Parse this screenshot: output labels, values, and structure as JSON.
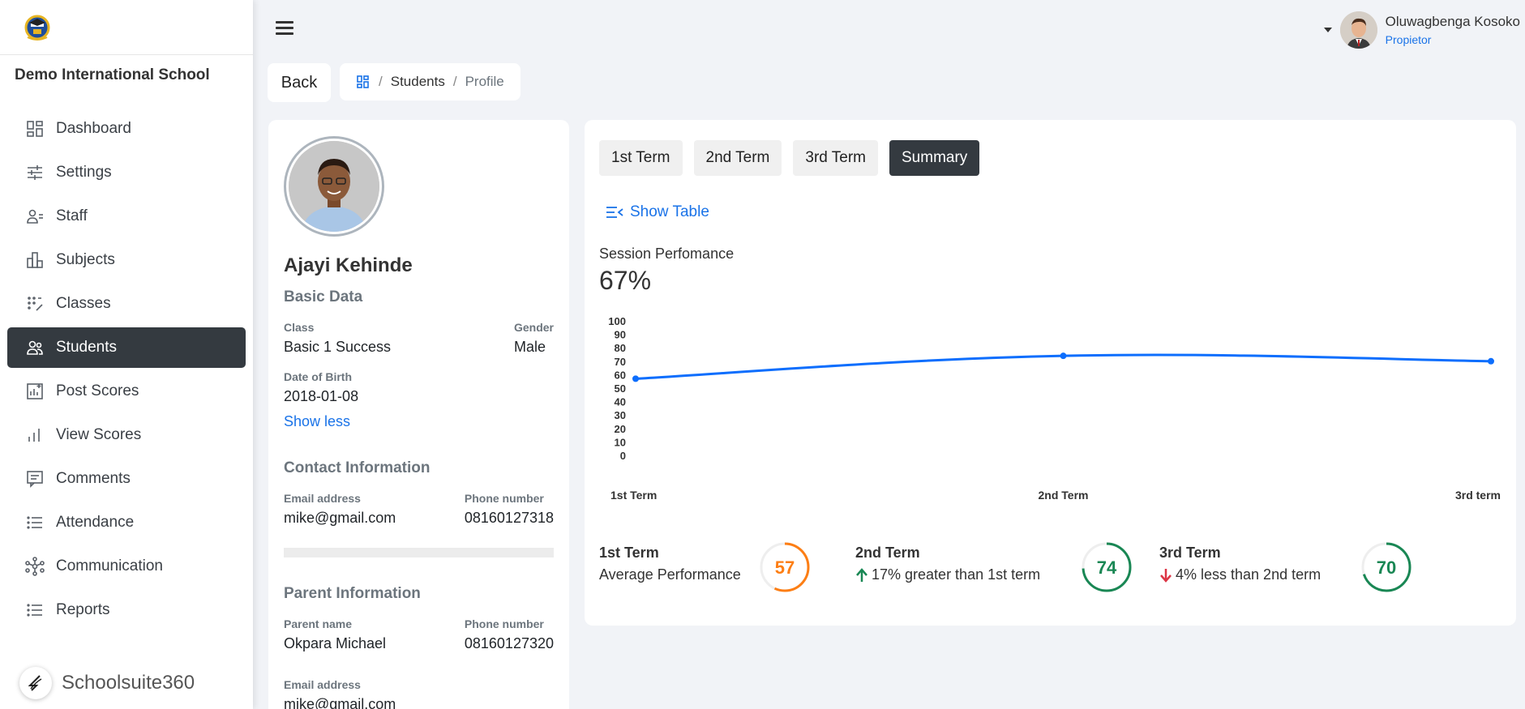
{
  "sidebar": {
    "school_name": "Demo International School",
    "items": [
      {
        "label": "Dashboard",
        "icon": "dashboard-icon"
      },
      {
        "label": "Settings",
        "icon": "sliders-icon"
      },
      {
        "label": "Staff",
        "icon": "staff-icon"
      },
      {
        "label": "Subjects",
        "icon": "subjects-icon"
      },
      {
        "label": "Classes",
        "icon": "classes-icon"
      },
      {
        "label": "Students",
        "icon": "students-icon",
        "active": true
      },
      {
        "label": "Post Scores",
        "icon": "post-scores-icon"
      },
      {
        "label": "View Scores",
        "icon": "bar-chart-icon"
      },
      {
        "label": "Comments",
        "icon": "comments-icon"
      },
      {
        "label": "Attendance",
        "icon": "list-icon"
      },
      {
        "label": "Communication",
        "icon": "network-icon"
      },
      {
        "label": "Reports",
        "icon": "list-icon"
      }
    ],
    "brand": "Schoolsuite360"
  },
  "header": {
    "user_name": "Oluwagbenga Kosoko",
    "user_role": "Propietor"
  },
  "breadcrumb": {
    "back": "Back",
    "items": [
      "Students",
      "Profile"
    ],
    "separator": "/"
  },
  "profile": {
    "name": "Ajayi Kehinde",
    "basic_title": "Basic Data",
    "class_label": "Class",
    "class_value": "Basic 1 Success",
    "gender_label": "Gender",
    "gender_value": "Male",
    "dob_label": "Date of Birth",
    "dob_value": "2018-01-08",
    "show_less": "Show less",
    "contact_title": "Contact Information",
    "email_label": "Email address",
    "email_value": "mike@gmail.com",
    "phone_label": "Phone number",
    "phone_value": "08160127318",
    "parent_title": "Parent Information",
    "parent_name_label": "Parent name",
    "parent_name_value": "Okpara Michael",
    "parent_phone_label": "Phone number",
    "parent_phone_value": "08160127320",
    "parent_email_label": "Email address",
    "parent_email_value": "mike@gmail.com"
  },
  "main": {
    "tabs": [
      {
        "label": "1st Term",
        "active": false
      },
      {
        "label": "2nd Term",
        "active": false
      },
      {
        "label": "3rd Term",
        "active": false
      },
      {
        "label": "Summary",
        "active": true
      }
    ],
    "show_table": "Show Table",
    "session_label": "Session Perfomance",
    "session_value": "67%",
    "stats": [
      {
        "title": "1st Term",
        "subtitle": "Average Performance",
        "arrow": "",
        "value": "57",
        "color": "#fd7e14"
      },
      {
        "title": "2nd Term",
        "subtitle": "17% greater than 1st term",
        "arrow": "up",
        "value": "74",
        "color": "#198754"
      },
      {
        "title": "3rd Term",
        "subtitle": "4% less than 2nd term",
        "arrow": "down",
        "value": "70",
        "color": "#198754"
      }
    ]
  },
  "colors": {
    "accent": "#1a73e8",
    "dark": "#343a40",
    "line": "#0d6efd",
    "up": "#198754",
    "down": "#dc3545"
  },
  "chart_data": {
    "type": "line",
    "categories": [
      "1st Term",
      "2nd Term",
      "3rd term"
    ],
    "series": [
      {
        "values": [
          57,
          74,
          70
        ]
      }
    ],
    "yticks": [
      "100",
      "90",
      "80",
      "70",
      "60",
      "50",
      "40",
      "30",
      "20",
      "10",
      "0"
    ],
    "ylim": [
      0,
      100
    ],
    "grid": false
  }
}
